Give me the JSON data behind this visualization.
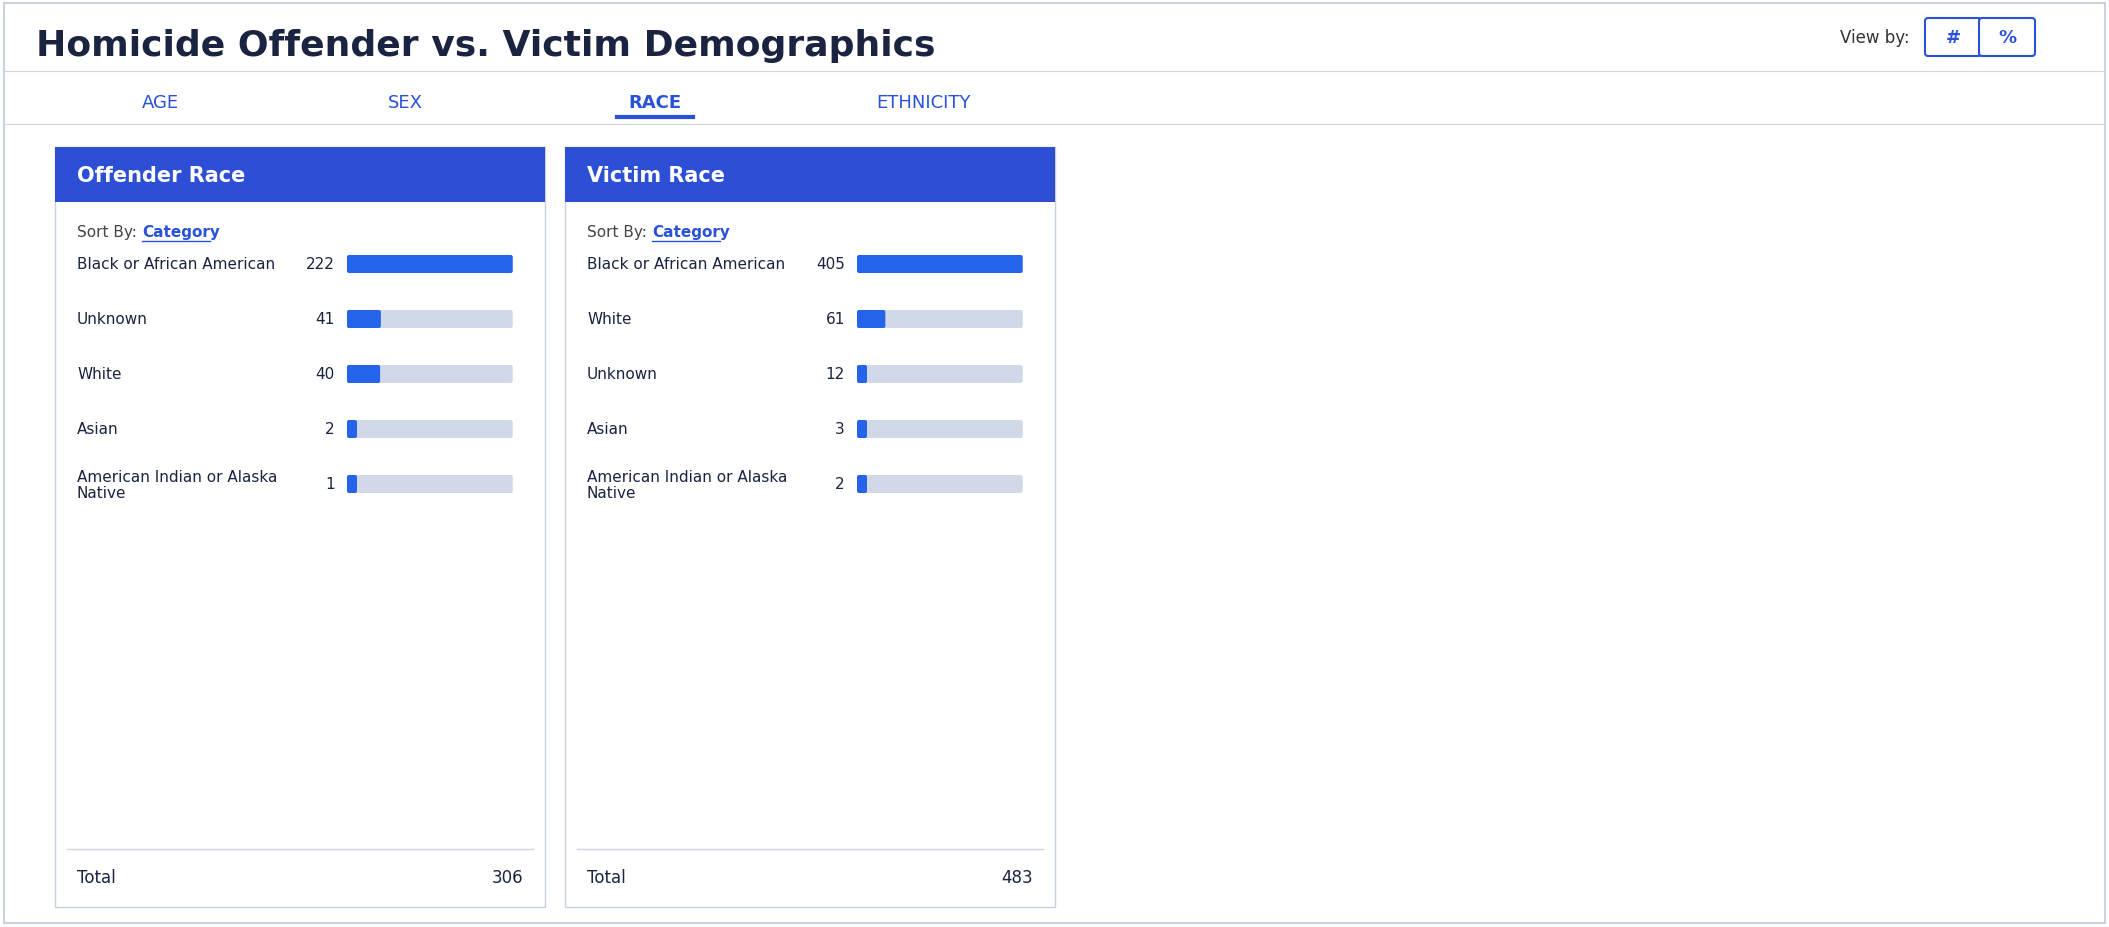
{
  "title": "Homicide Offender vs. Victim Demographics",
  "title_color": "#1a2340",
  "tabs": [
    "AGE",
    "SEX",
    "RACE",
    "ETHNICITY"
  ],
  "active_tab": "RACE",
  "tab_color": "#2952d9",
  "view_by_label": "View by:",
  "view_by_buttons": [
    "#",
    "%"
  ],
  "offender_panel": {
    "title": "Offender Race",
    "header_bg": "#2d4fd6",
    "header_text_color": "#ffffff",
    "sort_label": "Sort By: ",
    "sort_link": "Category",
    "sort_link_color": "#2952d9",
    "rows": [
      {
        "label": "Black or African American",
        "value": 222
      },
      {
        "label": "Unknown",
        "value": 41
      },
      {
        "label": "White",
        "value": 40
      },
      {
        "label": "Asian",
        "value": 2
      },
      {
        "label": "American Indian or Alaska\nNative",
        "value": 1
      }
    ],
    "total": 306,
    "bar_color": "#2563eb",
    "bar_bg_color": "#d1d9e8",
    "max_value": 222
  },
  "victim_panel": {
    "title": "Victim Race",
    "header_bg": "#2d4fd6",
    "header_text_color": "#ffffff",
    "sort_label": "Sort By: ",
    "sort_link": "Category",
    "sort_link_color": "#2952d9",
    "rows": [
      {
        "label": "Black or African American",
        "value": 405
      },
      {
        "label": "White",
        "value": 61
      },
      {
        "label": "Unknown",
        "value": 12
      },
      {
        "label": "Asian",
        "value": 3
      },
      {
        "label": "American Indian or Alaska\nNative",
        "value": 2
      }
    ],
    "total": 483,
    "bar_color": "#2563eb",
    "bar_bg_color": "#d1d9e8",
    "max_value": 405
  },
  "bg_color": "#ffffff",
  "panel_bg": "#ffffff",
  "panel_border": "#c8d0df",
  "label_color": "#1a2340",
  "value_color": "#1a2340",
  "total_label_color": "#1a2340",
  "separator_color": "#d0d5de",
  "outer_border_color": "#c0c8d8"
}
